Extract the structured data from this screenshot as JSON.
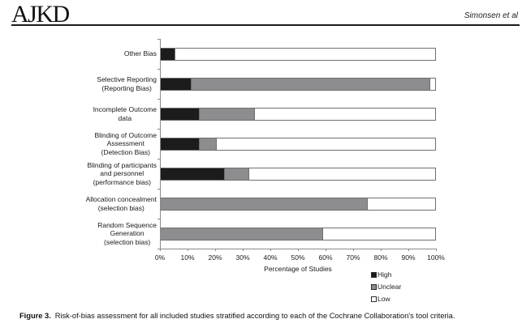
{
  "header": {
    "logo": "AJKD",
    "author": "Simonsen et al"
  },
  "chart_data": {
    "type": "bar",
    "orientation": "horizontal",
    "stacked": true,
    "categories": [
      "Other Bias",
      "Selective Reporting\n(Reporting Bias)",
      "Incomplete Outcome\ndata",
      "Blinding of Outcome\nAssessment\n(Detection Bias)",
      "Blinding of participants\nand personnel\n(performance bias)",
      "Allocation concealment\n(selection bias)",
      "Random Sequence\nGeneration\n(selection bias)"
    ],
    "series": [
      {
        "name": "High",
        "color": "#1c1c1c",
        "values": [
          5,
          11,
          14,
          14,
          23,
          0,
          0
        ]
      },
      {
        "name": "Unclear",
        "color": "#8d8d8f",
        "values": [
          0,
          87,
          20,
          6,
          9,
          75,
          59
        ]
      },
      {
        "name": "Low",
        "color": "#ffffff",
        "values": [
          95,
          2,
          66,
          80,
          68,
          25,
          41
        ]
      }
    ],
    "xlabel": "Percentage of Studies",
    "x_ticks": [
      "0%",
      "10%",
      "20%",
      "30%",
      "40%",
      "50%",
      "60%",
      "70%",
      "80%",
      "90%",
      "100%"
    ],
    "xlim": [
      0,
      100
    ],
    "grid": false,
    "legend_position": "bottom-right"
  },
  "legend": {
    "items": [
      {
        "label": "High",
        "color": "#1c1c1c"
      },
      {
        "label": "Unclear",
        "color": "#8d8d8f"
      },
      {
        "label": "Low",
        "color": "#ffffff"
      }
    ]
  },
  "caption": {
    "label": "Figure 3.",
    "text": "Risk-of-bias assessment for all included studies stratified according to each of the Cochrane Collaboration's tool criteria."
  }
}
